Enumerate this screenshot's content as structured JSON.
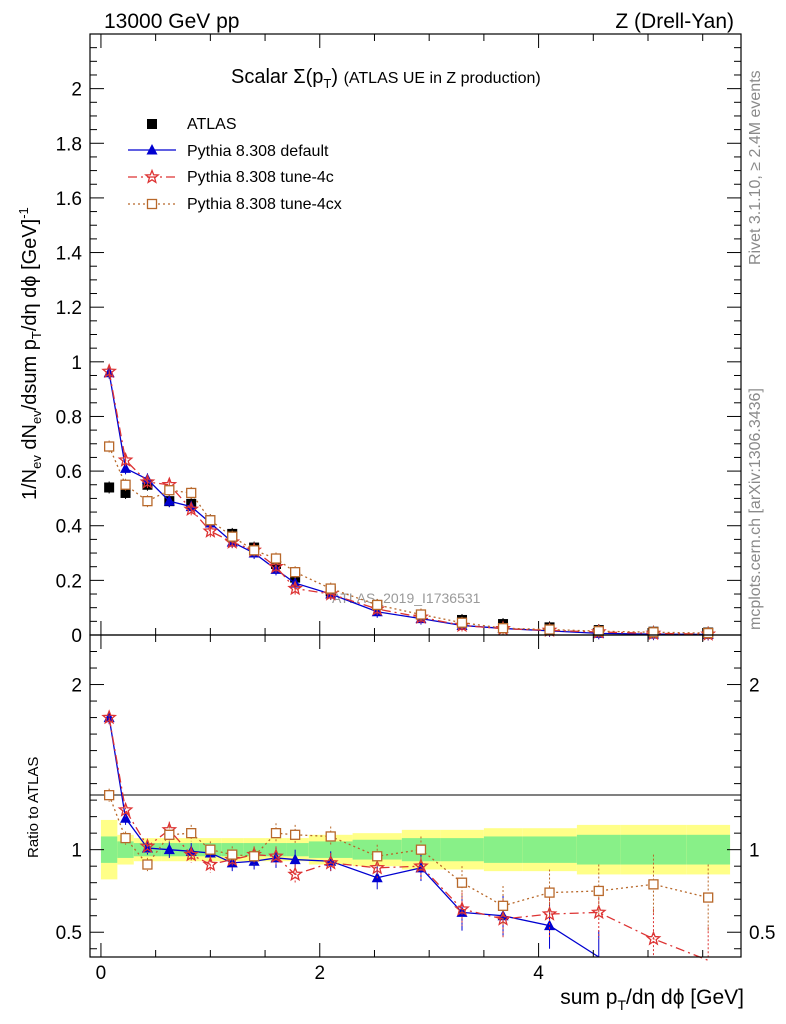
{
  "header": {
    "left": "13000 GeV pp",
    "right": "Z (Drell-Yan)"
  },
  "side_labels": {
    "rivet": "Rivet 3.1.10, ≥ 2.4M events",
    "mcplots": "mcplots.cern.ch [arXiv:1306.3436]"
  },
  "watermark": "ATLAS_2019_I1736531",
  "chart_data": [
    {
      "type": "line",
      "panel": "main",
      "title": "Scalar Σ(p_T) (ATLAS UE in Z production)",
      "ylabel": "1/N_ev dN_ev/dsum p_T/dη dϕ [GeV]^-1",
      "xlim": [
        -0.1,
        5.85
      ],
      "ylim": [
        0,
        2.2
      ],
      "yticks": [
        0,
        0.2,
        0.4,
        0.6,
        0.8,
        1,
        1.2,
        1.4,
        1.6,
        1.8,
        2
      ],
      "ytick_labels": [
        "0",
        "0.2",
        "0.4",
        "0.6",
        "0.8",
        "1",
        "1.2",
        "1.4",
        "1.6",
        "1.8",
        "2"
      ],
      "legend": {
        "placement": "top-left",
        "entries": [
          "ATLAS",
          "Pythia 8.308 default",
          "Pythia 8.308 tune-4c",
          "Pythia 8.308 tune-4cx"
        ]
      },
      "x": [
        0.075,
        0.225,
        0.425,
        0.625,
        0.825,
        1.0,
        1.2,
        1.4,
        1.6,
        1.775,
        2.1,
        2.525,
        2.925,
        3.3,
        3.675,
        4.1,
        4.55,
        5.05,
        5.55
      ],
      "series": [
        {
          "name": "ATLAS",
          "color": "#000000",
          "marker": "square",
          "values": [
            0.54,
            0.52,
            0.55,
            0.49,
            0.48,
            0.42,
            0.37,
            0.32,
            0.26,
            0.21,
            0.16,
            0.11,
            0.075,
            0.055,
            0.04,
            0.028,
            0.018,
            0.012,
            0.009
          ]
        },
        {
          "name": "Pythia 8.308 default",
          "color": "#0000d0",
          "marker": "triangle",
          "dash": "",
          "values": [
            0.96,
            0.61,
            0.57,
            0.49,
            0.47,
            0.41,
            0.34,
            0.3,
            0.24,
            0.19,
            0.15,
            0.085,
            0.06,
            0.035,
            0.024,
            0.015,
            0.006,
            0.003,
            0.002
          ]
        },
        {
          "name": "Pythia 8.308 tune-4c",
          "color": "#dd3333",
          "marker": "star",
          "dash": "9 4 2 4",
          "values": [
            0.965,
            0.64,
            0.56,
            0.55,
            0.46,
            0.38,
            0.34,
            0.31,
            0.25,
            0.17,
            0.15,
            0.095,
            0.065,
            0.035,
            0.023,
            0.017,
            0.011,
            0.006,
            0.003
          ]
        },
        {
          "name": "Pythia 8.308 tune-4cx",
          "color": "#b8682a",
          "marker": "opensquare",
          "dash": "2 3",
          "values": [
            0.69,
            0.55,
            0.49,
            0.53,
            0.52,
            0.42,
            0.36,
            0.31,
            0.28,
            0.23,
            0.17,
            0.11,
            0.075,
            0.045,
            0.025,
            0.02,
            0.014,
            0.01,
            0.007
          ]
        }
      ]
    },
    {
      "type": "line",
      "panel": "ratio",
      "ylabel": "Ratio to ATLAS",
      "xlabel": "sum p_T/dη dϕ [GeV]",
      "xlim": [
        -0.1,
        5.85
      ],
      "ylim": [
        0.35,
        2.3
      ],
      "xticks": [
        0,
        2,
        4
      ],
      "xtick_labels": [
        "0",
        "2",
        "4"
      ],
      "yticks": [
        0.5,
        1,
        2
      ],
      "ytick_labels": [
        "0.5",
        "1",
        "2"
      ],
      "band_edges": [
        0.0,
        0.15,
        0.3,
        0.55,
        0.7,
        0.9,
        1.1,
        1.3,
        1.5,
        1.7,
        1.9,
        2.3,
        2.75,
        3.1,
        3.5,
        3.85,
        4.35,
        4.75,
        5.35,
        5.75
      ],
      "band_inner": [
        0.08,
        0.05,
        0.04,
        0.04,
        0.04,
        0.04,
        0.04,
        0.04,
        0.04,
        0.04,
        0.05,
        0.06,
        0.07,
        0.07,
        0.08,
        0.08,
        0.09,
        0.09,
        0.09
      ],
      "band_outer": [
        0.18,
        0.09,
        0.07,
        0.07,
        0.07,
        0.07,
        0.07,
        0.07,
        0.07,
        0.07,
        0.09,
        0.1,
        0.12,
        0.12,
        0.13,
        0.13,
        0.15,
        0.15,
        0.15
      ],
      "x": [
        0.075,
        0.225,
        0.425,
        0.625,
        0.825,
        1.0,
        1.2,
        1.4,
        1.6,
        1.775,
        2.1,
        2.525,
        2.925,
        3.3,
        3.675,
        4.1,
        4.55,
        5.05,
        5.55
      ],
      "series": [
        {
          "name": "Pythia 8.308 default",
          "color": "#0000d0",
          "marker": "triangle",
          "dash": "",
          "values": [
            1.8,
            1.19,
            1.01,
            1.0,
            0.99,
            0.98,
            0.92,
            0.93,
            0.95,
            0.94,
            0.93,
            0.83,
            0.89,
            0.62,
            0.6,
            0.54,
            0.35,
            null,
            null
          ],
          "errors": [
            0.04,
            0.04,
            0.04,
            0.05,
            0.05,
            0.05,
            0.05,
            0.05,
            0.06,
            0.06,
            0.06,
            0.07,
            0.08,
            0.11,
            0.12,
            0.14,
            0.16,
            null,
            null
          ]
        },
        {
          "name": "Pythia 8.308 tune-4c",
          "color": "#dd3333",
          "marker": "star",
          "dash": "9 4 2 4",
          "values": [
            1.8,
            1.24,
            1.02,
            1.12,
            0.97,
            0.91,
            0.94,
            0.97,
            0.96,
            0.85,
            0.92,
            0.89,
            0.9,
            0.64,
            0.58,
            0.61,
            0.62,
            0.46,
            0.33
          ],
          "errors": [
            0.04,
            0.04,
            0.04,
            0.05,
            0.05,
            0.05,
            0.05,
            0.05,
            0.06,
            0.06,
            0.06,
            0.07,
            0.08,
            0.1,
            0.12,
            0.14,
            0.16,
            0.18,
            0.2
          ]
        },
        {
          "name": "Pythia 8.308 tune-4cx",
          "color": "#b8682a",
          "marker": "opensquare",
          "dash": "2 3",
          "values": [
            1.33,
            1.07,
            0.91,
            1.09,
            1.1,
            1.0,
            0.97,
            0.96,
            1.1,
            1.09,
            1.08,
            0.96,
            1.0,
            0.8,
            0.66,
            0.74,
            0.75,
            0.79,
            0.71
          ],
          "errors": [
            0.04,
            0.04,
            0.04,
            0.05,
            0.05,
            0.05,
            0.05,
            0.05,
            0.06,
            0.06,
            0.06,
            0.07,
            0.08,
            0.1,
            0.12,
            0.14,
            0.16,
            0.18,
            0.2
          ]
        }
      ]
    }
  ]
}
